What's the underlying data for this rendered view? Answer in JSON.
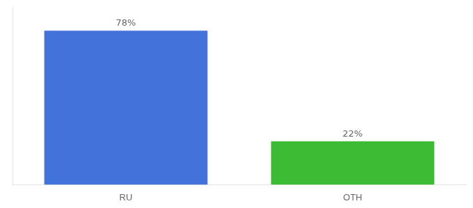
{
  "chart_data": {
    "type": "bar",
    "categories": [
      "RU",
      "OTH"
    ],
    "values": [
      78,
      22
    ],
    "value_labels": [
      "78%",
      "22%"
    ],
    "data_labels": true,
    "colors": [
      "#4472db",
      "#3dbb35"
    ],
    "ylim": [
      0,
      90
    ],
    "grid": false,
    "tick_labels": "x"
  }
}
